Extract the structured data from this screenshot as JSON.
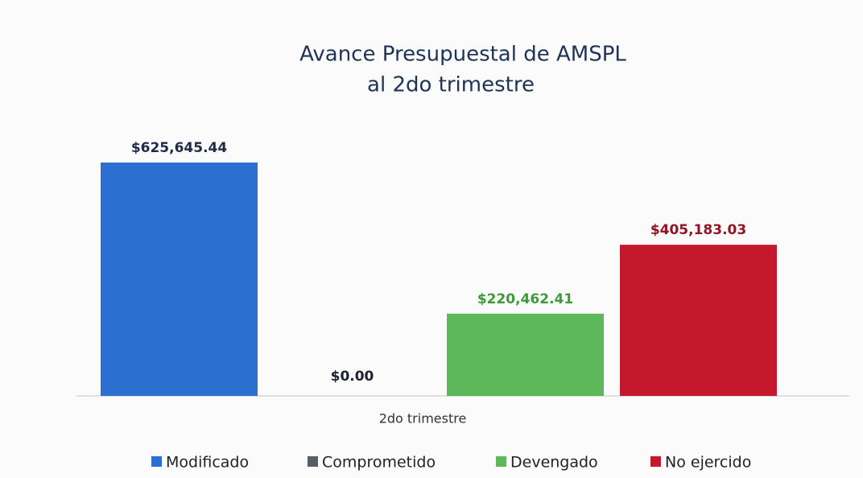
{
  "chart_data": {
    "type": "bar",
    "title": [
      "Avance Presupuestal de AMSPL",
      "al 2do trimestre"
    ],
    "categories": [
      "2do trimestre"
    ],
    "series": [
      {
        "name": "Modificado",
        "color": "#2b6fd1",
        "label_color": "#1e2a48",
        "values": [
          625645.44
        ],
        "value_labels": [
          "$625,645.44"
        ]
      },
      {
        "name": "Comprometido",
        "color": "#595d68",
        "label_color": "#1e2230",
        "values": [
          0
        ],
        "value_labels": [
          "$0.00"
        ]
      },
      {
        "name": "Devengado",
        "color": "#5db85a",
        "label_color": "#3f9a3c",
        "values": [
          220462.41
        ],
        "value_labels": [
          "$220,462.41"
        ]
      },
      {
        "name": "No ejercido",
        "color": "#c4192c",
        "label_color": "#951222",
        "values": [
          405183.03
        ],
        "value_labels": [
          "$405,183.03"
        ]
      }
    ],
    "ylim": [
      0,
      700000
    ]
  }
}
